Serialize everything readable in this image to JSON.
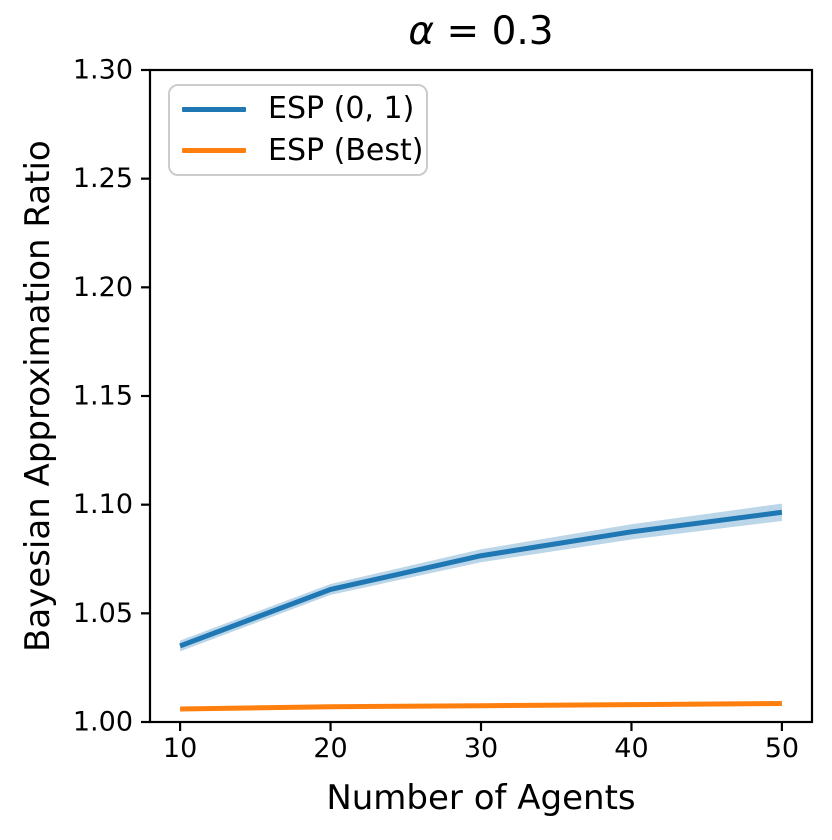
{
  "figure": {
    "kind": "matplotlib-line-plot"
  },
  "chart_data": {
    "type": "line",
    "title": "α = 0.3",
    "title_alpha": "α",
    "title_rest": " = 0.3",
    "xlabel": "Number of Agents",
    "ylabel": "Bayesian Approximation Ratio",
    "x": [
      10,
      20,
      30,
      40,
      50
    ],
    "xlim": [
      8,
      52
    ],
    "ylim": [
      1.0,
      1.3
    ],
    "xticks": [
      10,
      20,
      30,
      40,
      50
    ],
    "xticklabels": [
      "10",
      "20",
      "30",
      "40",
      "50"
    ],
    "yticks": [
      1.0,
      1.05,
      1.1,
      1.15,
      1.2,
      1.25,
      1.3
    ],
    "yticklabels": [
      "1.00",
      "1.05",
      "1.10",
      "1.15",
      "1.20",
      "1.25",
      "1.30"
    ],
    "grid": false,
    "legend_position": "upper-left",
    "axis_color": "#000000",
    "series": [
      {
        "name": "ESP (0, 1)",
        "color": "#1f77b4",
        "values": [
          1.035,
          1.061,
          1.0765,
          1.0875,
          1.0965
        ],
        "band_lower": [
          1.0325,
          1.0585,
          1.0735,
          1.084,
          1.0925
        ],
        "band_upper": [
          1.0375,
          1.0635,
          1.0795,
          1.091,
          1.1005
        ],
        "band_opacity": 0.3
      },
      {
        "name": "ESP (Best)",
        "color": "#ff7f0e",
        "values": [
          1.006,
          1.007,
          1.0075,
          1.008,
          1.0085
        ]
      }
    ]
  }
}
